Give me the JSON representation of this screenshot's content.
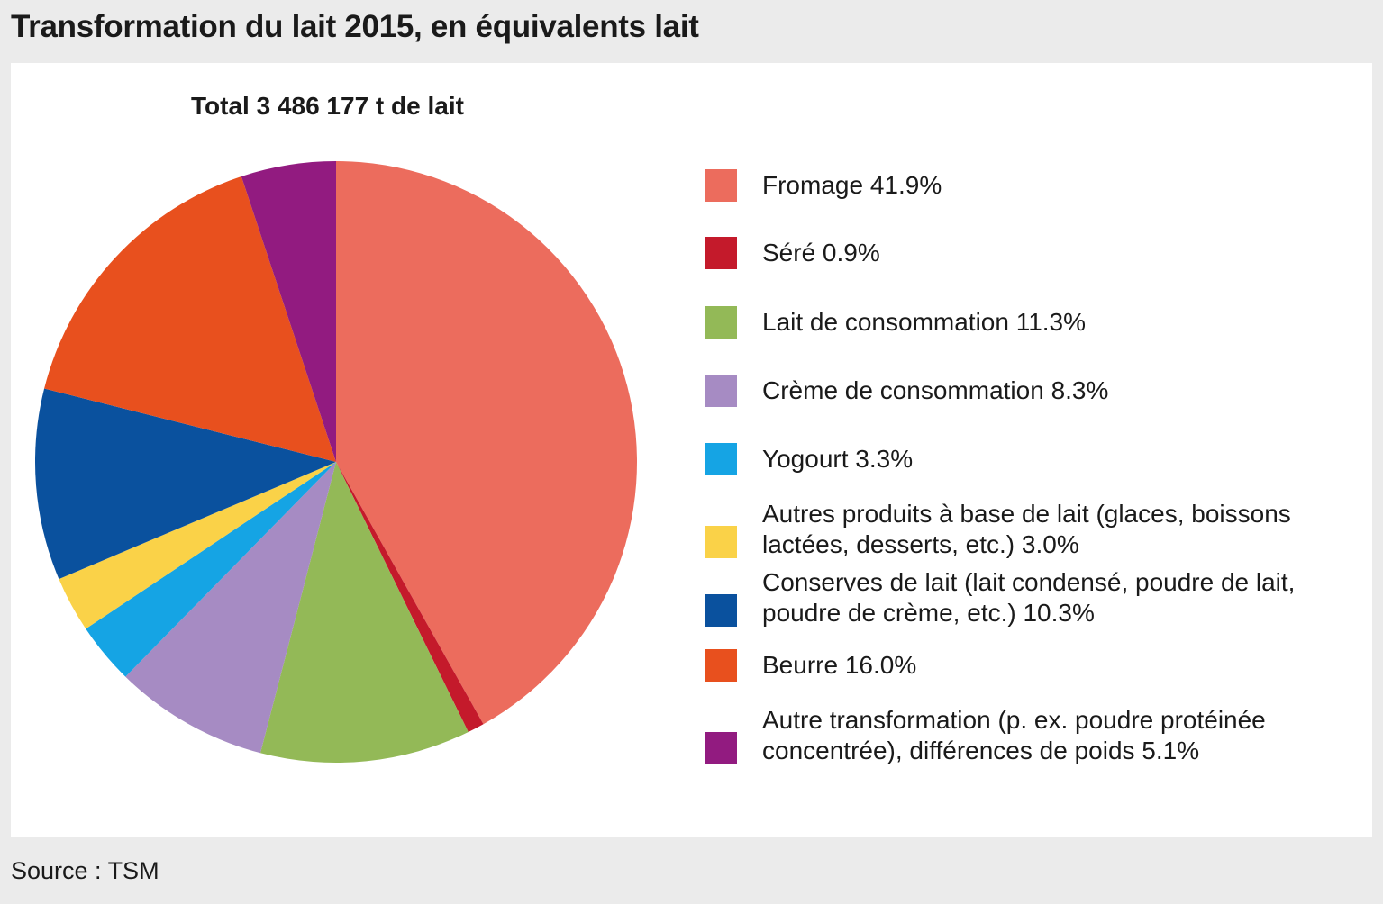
{
  "title": "Transformation du lait 2015, en équivalents lait",
  "source": "Source : TSM",
  "chart_data": {
    "type": "pie",
    "title": "Transformation du lait 2015, en équivalents lait",
    "subtitle": "Total 3 486 177 t de lait",
    "unit": "%",
    "legend_position": "right",
    "slices": [
      {
        "label": "Fromage",
        "value": 41.9,
        "legend": "Fromage 41.9%",
        "color": "#ec6c5d"
      },
      {
        "label": "Séré",
        "value": 0.9,
        "legend": "Séré 0.9%",
        "color": "#c41a2b"
      },
      {
        "label": "Lait de consommation",
        "value": 11.3,
        "legend": "Lait de consommation 11.3%",
        "color": "#93b957"
      },
      {
        "label": "Crème de consommation",
        "value": 8.3,
        "legend": "Crème de consommation 8.3%",
        "color": "#a68bc3"
      },
      {
        "label": "Yogourt",
        "value": 3.3,
        "legend": "Yogourt 3.3%",
        "color": "#15a4e4"
      },
      {
        "label": "Autres produits à base de lait (glaces, boissons lactées, desserts, etc.)",
        "value": 3.0,
        "legend": "Autres produits à base de lait (glaces, boissons lactées, desserts, etc.) 3.0%",
        "color": "#fad248"
      },
      {
        "label": "Conserves de lait (lait condensé, poudre de lait, poudre de crème, etc.)",
        "value": 10.3,
        "legend": "Conserves de lait (lait condensé, poudre de lait, poudre de crème, etc.) 10.3%",
        "color": "#0a519e"
      },
      {
        "label": "Beurre",
        "value": 16.0,
        "legend": "Beurre 16.0%",
        "color": "#e8501e"
      },
      {
        "label": "Autre transformation (p. ex. poudre protéinée concentrée), différences de poids",
        "value": 5.1,
        "legend": "Autre transformation (p. ex. poudre protéinée concentrée), différences de poids 5.1%",
        "color": "#921b80"
      }
    ]
  }
}
